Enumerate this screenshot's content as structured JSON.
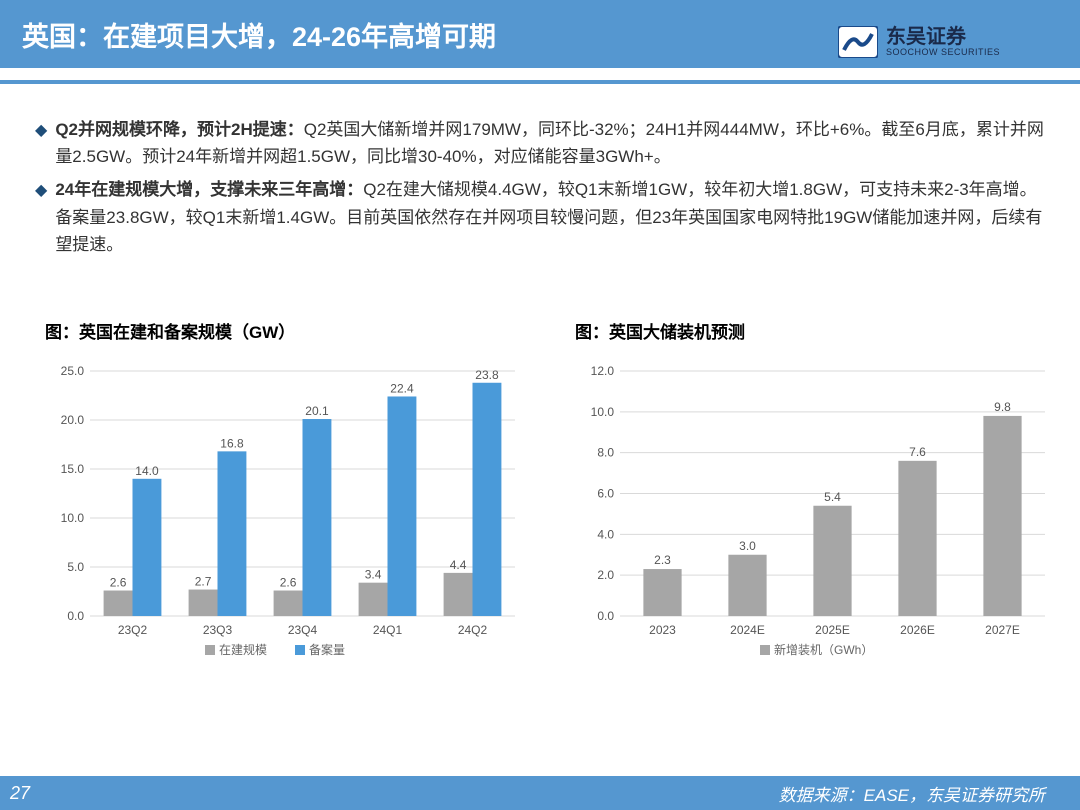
{
  "header": {
    "title": "英国：在建项目大增，24-26年高增可期"
  },
  "logo": {
    "cn": "东吴证券",
    "en": "SOOCHOW SECURITIES"
  },
  "bullets": [
    {
      "bold": "Q2并网规模环降，预计2H提速：",
      "text": "Q2英国大储新增并网179MW，同环比-32%；24H1并网444MW，环比+6%。截至6月底，累计并网量2.5GW。预计24年新增并网超1.5GW，同比增30-40%，对应储能容量3GWh+。"
    },
    {
      "bold": "24年在建规模大增，支撑未来三年高增：",
      "text": "Q2在建大储规模4.4GW，较Q1末新增1GW，较年初大增1.8GW，可支持未来2-3年高增。备案量23.8GW，较Q1末新增1.4GW。目前英国依然存在并网项目较慢问题，但23年英国国家电网特批19GW储能加速并网，后续有望提速。"
    }
  ],
  "chart_left": {
    "title": "图：英国在建和备案规模（GW）",
    "type": "grouped-bar",
    "categories": [
      "23Q2",
      "23Q3",
      "23Q4",
      "24Q1",
      "24Q2"
    ],
    "series": [
      {
        "name": "在建规模",
        "color": "#a6a6a6",
        "values": [
          2.6,
          2.7,
          2.6,
          3.4,
          4.4
        ]
      },
      {
        "name": "备案量",
        "color": "#4a9ad9",
        "values": [
          14.0,
          16.8,
          20.1,
          22.4,
          23.8
        ]
      }
    ],
    "ylim": [
      0,
      25
    ],
    "ytick_step": 5,
    "bar_width": 0.34,
    "grid_color": "#d9d9d9",
    "label_fontsize": 12
  },
  "chart_right": {
    "title": "图：英国大储装机预测",
    "type": "bar",
    "categories": [
      "2023",
      "2024E",
      "2025E",
      "2026E",
      "2027E"
    ],
    "series_name": "新增装机（GWh）",
    "values": [
      2.3,
      3.0,
      5.4,
      7.6,
      9.8
    ],
    "bar_color": "#a6a6a6",
    "ylim": [
      0,
      12
    ],
    "ytick_step": 2,
    "bar_width": 0.45,
    "grid_color": "#d9d9d9",
    "label_fontsize": 12
  },
  "footer": {
    "page": "27",
    "source": "数据来源：EASE，东吴证券研究所"
  }
}
